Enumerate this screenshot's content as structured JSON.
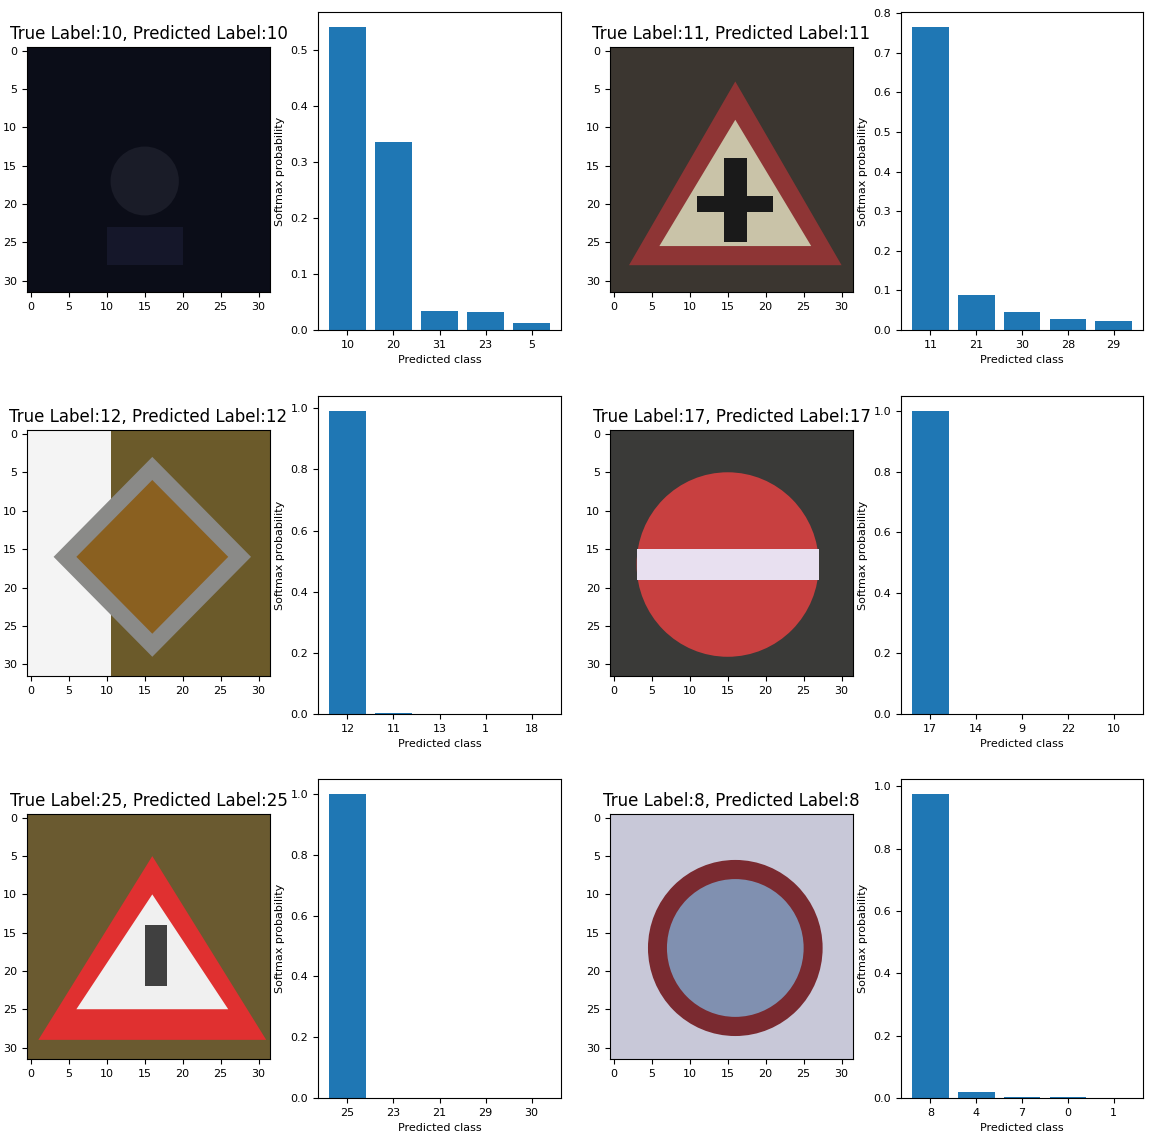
{
  "chart_data": [
    {
      "type": "image",
      "title": "True Label:10, Predicted Label:10",
      "xlim": [
        -0.5,
        31.5
      ],
      "ylim": [
        31.5,
        -0.5
      ],
      "xticks": [
        0,
        5,
        10,
        15,
        20,
        25,
        30
      ],
      "yticks": [
        0,
        5,
        10,
        15,
        20,
        25,
        30
      ]
    },
    {
      "type": "bar",
      "categories": [
        "10",
        "20",
        "31",
        "23",
        "5"
      ],
      "values": [
        0.54,
        0.335,
        0.033,
        0.032,
        0.013
      ],
      "color": "#1f77b4",
      "xlabel": "Predicted class",
      "ylabel": "Softmax probability",
      "ylim": [
        0,
        0.567
      ],
      "yticks": [
        0.0,
        0.1,
        0.2,
        0.3,
        0.4,
        0.5
      ]
    },
    {
      "type": "image",
      "title": "True Label:11, Predicted Label:11",
      "xlim": [
        -0.5,
        31.5
      ],
      "ylim": [
        31.5,
        -0.5
      ],
      "xticks": [
        0,
        5,
        10,
        15,
        20,
        25,
        30
      ],
      "yticks": [
        0,
        5,
        10,
        15,
        20,
        25,
        30
      ]
    },
    {
      "type": "bar",
      "categories": [
        "11",
        "21",
        "30",
        "28",
        "29"
      ],
      "values": [
        0.765,
        0.088,
        0.045,
        0.027,
        0.022
      ],
      "color": "#1f77b4",
      "xlabel": "Predicted class",
      "ylabel": "Softmax probability",
      "ylim": [
        0,
        0.803
      ],
      "yticks": [
        0.0,
        0.1,
        0.2,
        0.3,
        0.4,
        0.5,
        0.6,
        0.7,
        0.8
      ]
    },
    {
      "type": "image",
      "title": "True Label:12, Predicted Label:12",
      "xlim": [
        -0.5,
        31.5
      ],
      "ylim": [
        31.5,
        -0.5
      ],
      "xticks": [
        0,
        5,
        10,
        15,
        20,
        25,
        30
      ],
      "yticks": [
        0,
        5,
        10,
        15,
        20,
        25,
        30
      ]
    },
    {
      "type": "bar",
      "categories": [
        "12",
        "11",
        "13",
        "1",
        "18"
      ],
      "values": [
        0.99,
        0.004,
        0.0005,
        0.0002,
        0.0001
      ],
      "color": "#1f77b4",
      "xlabel": "Predicted class",
      "ylabel": "Softmax probability",
      "ylim": [
        0,
        1.04
      ],
      "yticks": [
        0.0,
        0.2,
        0.4,
        0.6,
        0.8,
        1.0
      ]
    },
    {
      "type": "image",
      "title": "True Label:17, Predicted Label:17",
      "xlim": [
        -0.5,
        31.5
      ],
      "ylim": [
        31.5,
        -0.5
      ],
      "xticks": [
        0,
        5,
        10,
        15,
        20,
        25,
        30
      ],
      "yticks": [
        0,
        5,
        10,
        15,
        20,
        25,
        30
      ]
    },
    {
      "type": "bar",
      "categories": [
        "17",
        "14",
        "9",
        "22",
        "10"
      ],
      "values": [
        1.0,
        0.0002,
        0.0001,
        0.0001,
        0.0001
      ],
      "color": "#1f77b4",
      "xlabel": "Predicted class",
      "ylabel": "Softmax probability",
      "ylim": [
        0,
        1.05
      ],
      "yticks": [
        0.0,
        0.2,
        0.4,
        0.6,
        0.8,
        1.0
      ]
    },
    {
      "type": "image",
      "title": "True Label:25, Predicted Label:25",
      "xlim": [
        -0.5,
        31.5
      ],
      "ylim": [
        31.5,
        -0.5
      ],
      "xticks": [
        0,
        5,
        10,
        15,
        20,
        25,
        30
      ],
      "yticks": [
        0,
        5,
        10,
        15,
        20,
        25,
        30
      ]
    },
    {
      "type": "bar",
      "categories": [
        "25",
        "23",
        "21",
        "29",
        "30"
      ],
      "values": [
        1.0,
        0.0002,
        0.0001,
        0.0001,
        0.0001
      ],
      "color": "#1f77b4",
      "xlabel": "Predicted class",
      "ylabel": "Softmax probability",
      "ylim": [
        0,
        1.05
      ],
      "yticks": [
        0.0,
        0.2,
        0.4,
        0.6,
        0.8,
        1.0
      ]
    },
    {
      "type": "image",
      "title": "True Label:8, Predicted Label:8",
      "xlim": [
        -0.5,
        31.5
      ],
      "ylim": [
        31.5,
        -0.5
      ],
      "xticks": [
        0,
        5,
        10,
        15,
        20,
        25,
        30
      ],
      "yticks": [
        0,
        5,
        10,
        15,
        20,
        25,
        30
      ]
    },
    {
      "type": "bar",
      "categories": [
        "8",
        "4",
        "7",
        "0",
        "1"
      ],
      "values": [
        0.975,
        0.018,
        0.003,
        0.002,
        0.001
      ],
      "color": "#1f77b4",
      "xlabel": "Predicted class",
      "ylabel": "Softmax probability",
      "ylim": [
        0,
        1.024
      ],
      "yticks": [
        0.0,
        0.2,
        0.4,
        0.6,
        0.8,
        1.0
      ]
    }
  ]
}
